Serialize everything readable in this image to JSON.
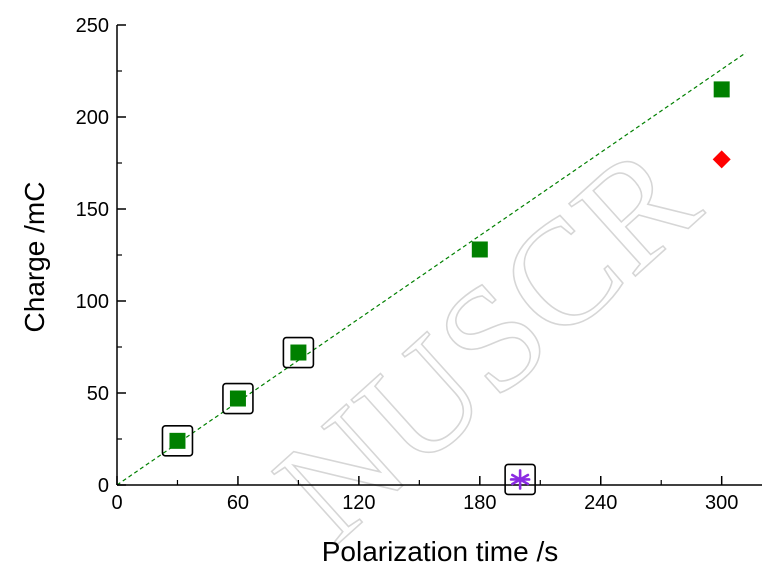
{
  "chart_data": {
    "type": "scatter",
    "xlabel": "Polarization time /s",
    "ylabel": "Charge /mC",
    "xlim": [
      0,
      320
    ],
    "ylim": [
      0,
      250
    ],
    "x_ticks": [
      0,
      60,
      120,
      180,
      240,
      300
    ],
    "y_ticks": [
      0,
      50,
      100,
      150,
      200,
      250
    ],
    "x_minor_step": 30,
    "y_minor_step": 25,
    "grid": false,
    "series": [
      {
        "marker": "square",
        "color": "#008000",
        "points": [
          [
            30,
            24
          ],
          [
            60,
            47
          ],
          [
            90,
            72
          ],
          [
            180,
            128
          ],
          [
            300,
            215
          ]
        ]
      },
      {
        "marker": "diamond",
        "color": "#ff0000",
        "points": [
          [
            300,
            177
          ]
        ]
      },
      {
        "marker": "asterisk",
        "color": "#8b2be2",
        "points": [
          [
            200,
            3
          ]
        ]
      }
    ],
    "highlighted_points": [
      [
        30,
        24
      ],
      [
        60,
        47
      ],
      [
        90,
        72
      ],
      [
        200,
        3
      ]
    ],
    "fit_line": {
      "style": "dashed",
      "color": "#008000",
      "slope": 0.753,
      "intercept": 0,
      "x_range": [
        0,
        312
      ]
    },
    "watermark": "NUSCR"
  }
}
